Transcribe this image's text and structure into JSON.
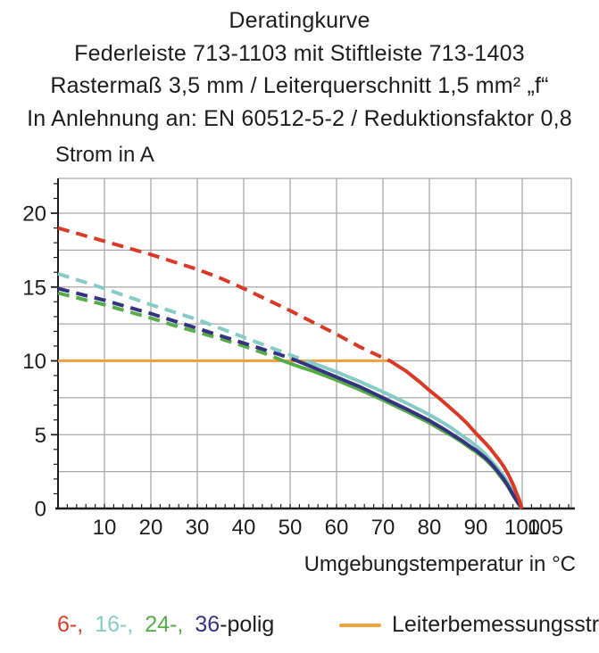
{
  "header": {
    "lines": [
      "Deratingkurve",
      "Federleiste 713-1103 mit Stiftleiste 713-1403",
      "Rastermaß 3,5 mm / Leiterquerschnitt 1,5 mm² „f“",
      "In Anlehnung an: EN 60512-5-2 / Reduktionsfaktor 0,8"
    ]
  },
  "legend": {
    "poles": [
      {
        "label": "6-,",
        "color": "#d93a26"
      },
      {
        "label": "16-,",
        "color": "#87cbc6"
      },
      {
        "label": "24-,",
        "color": "#57ac49"
      },
      {
        "label": "36",
        "color": "#33337f"
      }
    ],
    "poles_suffix": "-polig",
    "rated": {
      "label": "Leiterbemessungsstrom",
      "swatch_color": "#f0a23c"
    }
  },
  "colors": {
    "grid": "#a7a7a7",
    "axis": "#1d1d1d",
    "text": "#1d1d1d"
  },
  "chart_data": {
    "type": "line",
    "title": "Deratingkurve",
    "xlabel": "Umgebungstemperatur in °C",
    "ylabel": "Strom in A",
    "xlim": [
      0,
      110.5
    ],
    "ylim": [
      0,
      22.4
    ],
    "grid": "on",
    "x_grid": [
      10,
      20,
      30,
      40,
      50,
      60,
      70,
      80,
      90,
      100
    ],
    "y_grid": [
      2.5,
      5,
      7.5,
      10,
      12.5,
      15,
      17.5,
      20
    ],
    "x_minor_step": 2,
    "y_minor_step": 1,
    "x_ticks": [
      {
        "value": 10,
        "label": "10"
      },
      {
        "value": 20,
        "label": "20"
      },
      {
        "value": 30,
        "label": "30"
      },
      {
        "value": 40,
        "label": "40"
      },
      {
        "value": 50,
        "label": "50"
      },
      {
        "value": 60,
        "label": "60"
      },
      {
        "value": 70,
        "label": "70"
      },
      {
        "value": 80,
        "label": "80"
      },
      {
        "value": 90,
        "label": "90"
      },
      {
        "value": 100,
        "label": "100"
      },
      {
        "value": 105,
        "label": "105"
      }
    ],
    "y_ticks": [
      {
        "value": 0,
        "label": "0"
      },
      {
        "value": 5,
        "label": "5"
      },
      {
        "value": 10,
        "label": "10"
      },
      {
        "value": 15,
        "label": "15"
      },
      {
        "value": 20,
        "label": "20"
      }
    ],
    "series": [
      {
        "name": "Leiterbemessungsstrom",
        "color": "#f0a23c",
        "width": 3,
        "segments": [
          {
            "style": "solid",
            "points": [
              [
                0,
                10
              ],
              [
                72,
                10
              ]
            ]
          }
        ]
      },
      {
        "name": "16-polig",
        "color": "#87cbc6",
        "segments": [
          {
            "style": "dashed",
            "points": [
              [
                0,
                15.9
              ],
              [
                5,
                15.4
              ],
              [
                10,
                14.9
              ],
              [
                15,
                14.35
              ],
              [
                20,
                13.8
              ],
              [
                25,
                13.3
              ],
              [
                30,
                12.8
              ],
              [
                35,
                12.2
              ],
              [
                40,
                11.6
              ],
              [
                45,
                11.0
              ],
              [
                50,
                10.4
              ],
              [
                53.5,
                10.0
              ]
            ]
          },
          {
            "style": "solid",
            "points": [
              [
                53.5,
                10.0
              ],
              [
                57,
                9.6
              ],
              [
                60,
                9.25
              ],
              [
                65,
                8.6
              ],
              [
                70,
                7.9
              ],
              [
                75,
                7.15
              ],
              [
                80,
                6.35
              ],
              [
                83,
                5.8
              ],
              [
                85,
                5.4
              ],
              [
                87,
                4.95
              ],
              [
                89,
                4.5
              ],
              [
                90,
                4.25
              ],
              [
                91,
                4.0
              ],
              [
                92,
                3.7
              ],
              [
                93,
                3.35
              ],
              [
                94,
                3.0
              ],
              [
                95,
                2.6
              ],
              [
                96,
                2.2
              ],
              [
                97,
                1.7
              ],
              [
                98,
                1.1
              ],
              [
                99,
                0.55
              ],
              [
                100,
                0
              ]
            ]
          }
        ]
      },
      {
        "name": "24-polig",
        "color": "#57ac49",
        "segments": [
          {
            "style": "dashed",
            "points": [
              [
                0,
                14.6
              ],
              [
                5,
                14.2
              ],
              [
                10,
                13.8
              ],
              [
                15,
                13.35
              ],
              [
                20,
                12.9
              ],
              [
                25,
                12.4
              ],
              [
                30,
                11.95
              ],
              [
                35,
                11.5
              ],
              [
                40,
                11.0
              ],
              [
                45,
                10.45
              ],
              [
                48.5,
                10.0
              ]
            ]
          },
          {
            "style": "solid",
            "points": [
              [
                48.5,
                10.0
              ],
              [
                52,
                9.6
              ],
              [
                55,
                9.3
              ],
              [
                60,
                8.7
              ],
              [
                65,
                8.05
              ],
              [
                70,
                7.35
              ],
              [
                75,
                6.6
              ],
              [
                80,
                5.8
              ],
              [
                83,
                5.25
              ],
              [
                85,
                4.9
              ],
              [
                87,
                4.5
              ],
              [
                89,
                4.05
              ],
              [
                90,
                3.85
              ],
              [
                91,
                3.6
              ],
              [
                92,
                3.35
              ],
              [
                93,
                3.05
              ],
              [
                94,
                2.7
              ],
              [
                95,
                2.3
              ],
              [
                96,
                1.9
              ],
              [
                97,
                1.45
              ],
              [
                98,
                0.9
              ],
              [
                99,
                0.4
              ],
              [
                99.8,
                0
              ]
            ]
          }
        ]
      },
      {
        "name": "36-polig",
        "color": "#33337f",
        "segments": [
          {
            "style": "dashed",
            "points": [
              [
                0,
                14.9
              ],
              [
                5,
                14.5
              ],
              [
                10,
                14.1
              ],
              [
                15,
                13.65
              ],
              [
                20,
                13.2
              ],
              [
                25,
                12.7
              ],
              [
                30,
                12.2
              ],
              [
                35,
                11.7
              ],
              [
                40,
                11.2
              ],
              [
                45,
                10.7
              ],
              [
                48,
                10.4
              ],
              [
                51.5,
                10.0
              ]
            ]
          },
          {
            "style": "solid",
            "points": [
              [
                51.5,
                10.0
              ],
              [
                55,
                9.55
              ],
              [
                60,
                8.9
              ],
              [
                65,
                8.25
              ],
              [
                70,
                7.5
              ],
              [
                75,
                6.75
              ],
              [
                80,
                5.95
              ],
              [
                83,
                5.4
              ],
              [
                85,
                5.0
              ],
              [
                87,
                4.6
              ],
              [
                89,
                4.15
              ],
              [
                90,
                3.95
              ],
              [
                91,
                3.7
              ],
              [
                92,
                3.45
              ],
              [
                93,
                3.15
              ],
              [
                94,
                2.8
              ],
              [
                95,
                2.4
              ],
              [
                96,
                2.0
              ],
              [
                97,
                1.5
              ],
              [
                98,
                0.95
              ],
              [
                99,
                0.45
              ],
              [
                100,
                0
              ]
            ]
          }
        ]
      },
      {
        "name": "6-polig",
        "color": "#d93a26",
        "segments": [
          {
            "style": "dashed",
            "points": [
              [
                0,
                19.0
              ],
              [
                5,
                18.55
              ],
              [
                10,
                18.1
              ],
              [
                15,
                17.65
              ],
              [
                20,
                17.2
              ],
              [
                25,
                16.7
              ],
              [
                30,
                16.2
              ],
              [
                35,
                15.6
              ],
              [
                40,
                14.9
              ],
              [
                45,
                14.15
              ],
              [
                50,
                13.4
              ],
              [
                55,
                12.6
              ],
              [
                60,
                11.8
              ],
              [
                65,
                10.95
              ],
              [
                68,
                10.5
              ],
              [
                71.5,
                10.0
              ]
            ]
          },
          {
            "style": "solid",
            "points": [
              [
                71.5,
                10.0
              ],
              [
                75,
                9.3
              ],
              [
                78,
                8.55
              ],
              [
                80,
                8.0
              ],
              [
                82,
                7.5
              ],
              [
                84,
                6.95
              ],
              [
                86,
                6.4
              ],
              [
                88,
                5.8
              ],
              [
                90,
                5.1
              ],
              [
                92,
                4.45
              ],
              [
                93,
                4.1
              ],
              [
                94,
                3.7
              ],
              [
                95,
                3.3
              ],
              [
                96,
                2.85
              ],
              [
                97,
                2.3
              ],
              [
                98,
                1.65
              ],
              [
                98.8,
                1.0
              ],
              [
                99.4,
                0.55
              ],
              [
                99.9,
                0
              ]
            ]
          }
        ]
      }
    ]
  }
}
